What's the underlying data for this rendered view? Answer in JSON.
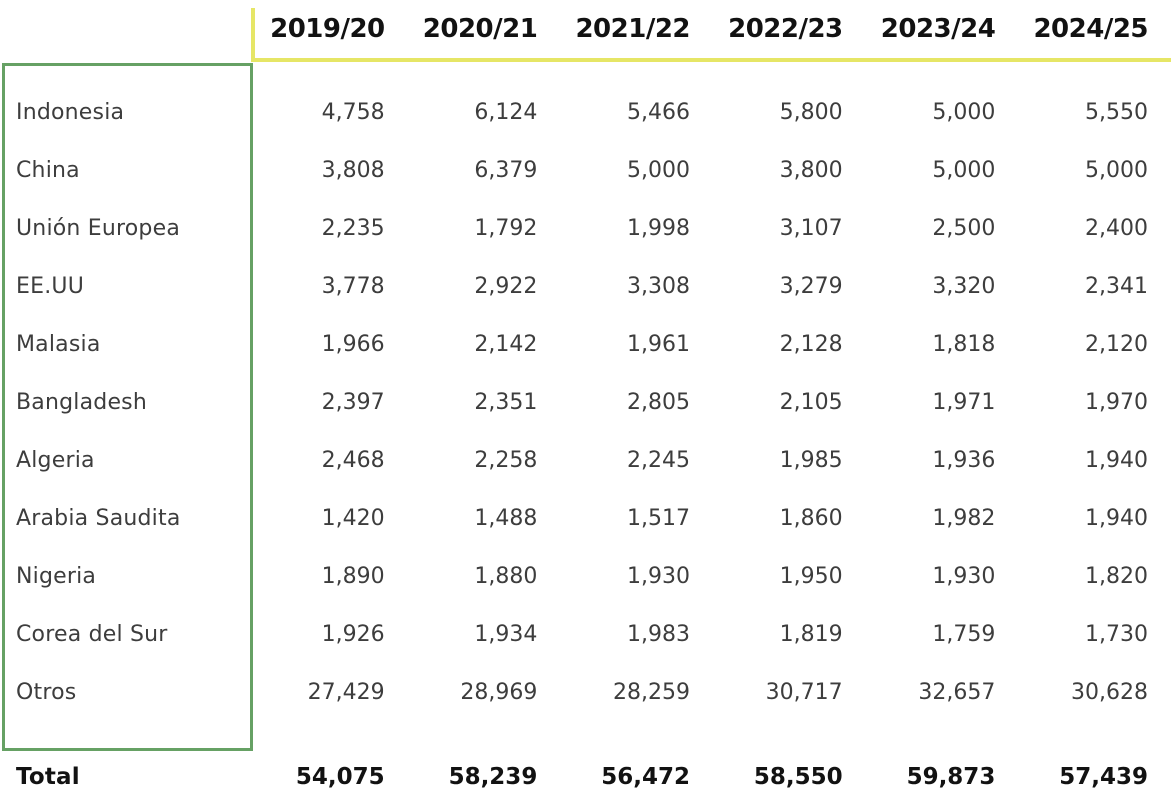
{
  "chart_data": {
    "type": "table",
    "categories": [
      "2019/20",
      "2020/21",
      "2021/22",
      "2022/23",
      "2023/24",
      "2024/25"
    ],
    "series": [
      {
        "name": "Indonesia",
        "values": [
          4758,
          6124,
          5466,
          5800,
          5000,
          5550
        ]
      },
      {
        "name": "China",
        "values": [
          3808,
          6379,
          5000,
          3800,
          5000,
          5000
        ]
      },
      {
        "name": "Unión Europea",
        "values": [
          2235,
          1792,
          1998,
          3107,
          2500,
          2400
        ]
      },
      {
        "name": "EE.UU",
        "values": [
          3778,
          2922,
          3308,
          3279,
          3320,
          2341
        ]
      },
      {
        "name": "Malasia",
        "values": [
          1966,
          2142,
          1961,
          2128,
          1818,
          2120
        ]
      },
      {
        "name": "Bangladesh",
        "values": [
          2397,
          2351,
          2805,
          2105,
          1971,
          1970
        ]
      },
      {
        "name": "Algeria",
        "values": [
          2468,
          2258,
          2245,
          1985,
          1936,
          1940
        ]
      },
      {
        "name": "Arabia Saudita",
        "values": [
          1420,
          1488,
          1517,
          1860,
          1982,
          1940
        ]
      },
      {
        "name": "Nigeria",
        "values": [
          1890,
          1880,
          1930,
          1950,
          1930,
          1820
        ]
      },
      {
        "name": "Corea del Sur",
        "values": [
          1926,
          1934,
          1983,
          1819,
          1759,
          1730
        ]
      },
      {
        "name": "Otros",
        "values": [
          27429,
          28969,
          28259,
          30717,
          32657,
          30628
        ]
      }
    ],
    "total": {
      "name": "Total",
      "values": [
        54075,
        58239,
        56472,
        58550,
        59873,
        57439
      ]
    }
  },
  "table": {
    "headers": [
      "2019/20",
      "2020/21",
      "2021/22",
      "2022/23",
      "2023/24",
      "2024/25"
    ],
    "rows": [
      {
        "name": "Indonesia",
        "values": [
          "4,758",
          "6,124",
          "5,466",
          "5,800",
          "5,000",
          "5,550"
        ]
      },
      {
        "name": "China",
        "values": [
          "3,808",
          "6,379",
          "5,000",
          "3,800",
          "5,000",
          "5,000"
        ]
      },
      {
        "name": "Unión Europea",
        "values": [
          "2,235",
          "1,792",
          "1,998",
          "3,107",
          "2,500",
          "2,400"
        ]
      },
      {
        "name": "EE.UU",
        "values": [
          "3,778",
          "2,922",
          "3,308",
          "3,279",
          "3,320",
          "2,341"
        ]
      },
      {
        "name": "Malasia",
        "values": [
          "1,966",
          "2,142",
          "1,961",
          "2,128",
          "1,818",
          "2,120"
        ]
      },
      {
        "name": "Bangladesh",
        "values": [
          "2,397",
          "2,351",
          "2,805",
          "2,105",
          "1,971",
          "1,970"
        ]
      },
      {
        "name": "Algeria",
        "values": [
          "2,468",
          "2,258",
          "2,245",
          "1,985",
          "1,936",
          "1,940"
        ]
      },
      {
        "name": "Arabia Saudita",
        "values": [
          "1,420",
          "1,488",
          "1,517",
          "1,860",
          "1,982",
          "1,940"
        ]
      },
      {
        "name": "Nigeria",
        "values": [
          "1,890",
          "1,880",
          "1,930",
          "1,950",
          "1,930",
          "1,820"
        ]
      },
      {
        "name": "Corea del Sur",
        "values": [
          "1,926",
          "1,934",
          "1,983",
          "1,819",
          "1,759",
          "1,730"
        ]
      },
      {
        "name": "Otros",
        "values": [
          "27,429",
          "28,969",
          "28,259",
          "30,717",
          "32,657",
          "30,628"
        ]
      }
    ],
    "total": {
      "name": "Total",
      "values": [
        "54,075",
        "58,239",
        "56,472",
        "58,550",
        "59,873",
        "57,439"
      ]
    }
  },
  "colors": {
    "accent_yellow": "#e6e666",
    "accent_green": "#66a164",
    "text_dark": "#3d3d3d",
    "text_black": "#121212"
  }
}
